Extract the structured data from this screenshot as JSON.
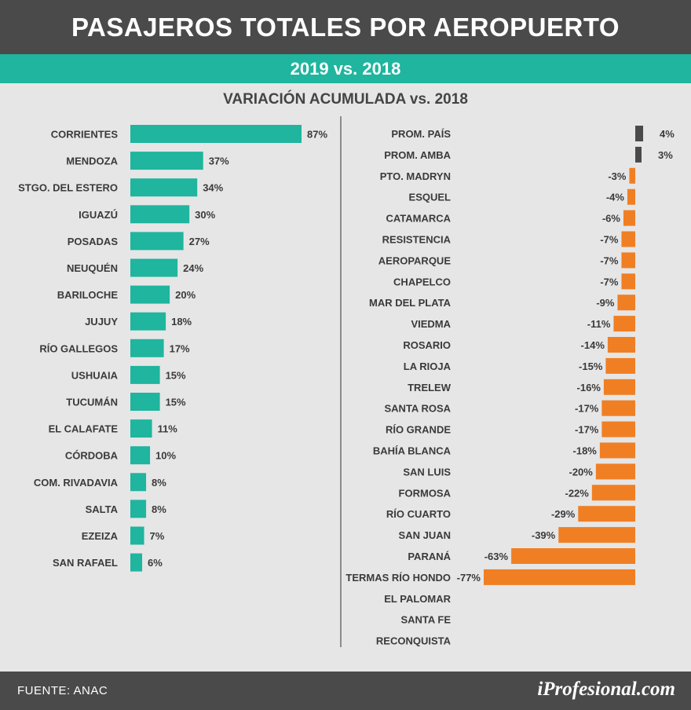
{
  "header": {
    "title": "PASAJEROS TOTALES POR AEROPUERTO",
    "subtitle": "2019 vs. 2018"
  },
  "footer": {
    "source": "FUENTE: ANAC",
    "logo": "iProfesional.com"
  },
  "colors": {
    "positive": "#1fb59e",
    "average": "#4a4a4a",
    "negative": "#f07f24"
  },
  "chart_data": [
    {
      "type": "bar",
      "orientation": "horizontal",
      "title": "VARIACIÓN ACUMULADA vs. 2018",
      "unit": "%",
      "categories": [
        "CORRIENTES",
        "MENDOZA",
        "STGO. DEL ESTERO",
        "IGUAZÚ",
        "POSADAS",
        "NEUQUÉN",
        "BARILOCHE",
        "JUJUY",
        "RÍO GALLEGOS",
        "USHUAIA",
        "TUCUMÁN",
        "EL CALAFATE",
        "CÓRDOBA",
        "COM. RIVADAVIA",
        "SALTA",
        "EZEIZA",
        "SAN RAFAEL"
      ],
      "values": [
        87,
        37,
        34,
        30,
        27,
        24,
        20,
        18,
        17,
        15,
        15,
        11,
        10,
        8,
        8,
        7,
        6
      ],
      "labels": [
        "87%",
        "37%",
        "34%",
        "30%",
        "27%",
        "24%",
        "20%",
        "18%",
        "17%",
        "15%",
        "15%",
        "11%",
        "10%",
        "8%",
        "8%",
        "7%",
        "6%"
      ]
    },
    {
      "type": "bar",
      "orientation": "horizontal",
      "unit": "%",
      "categories": [
        "PROM. PAÍS",
        "PROM. AMBA",
        "PTO. MADRYN",
        "ESQUEL",
        "CATAMARCA",
        "RESISTENCIA",
        "AEROPARQUE",
        "CHAPELCO",
        "MAR DEL PLATA",
        "VIEDMA",
        "ROSARIO",
        "LA RIOJA",
        "TRELEW",
        "SANTA ROSA",
        "RÍO GRANDE",
        "BAHÍA BLANCA",
        "SAN LUIS",
        "FORMOSA",
        "RÍO CUARTO",
        "SAN JUAN",
        "PARANÁ",
        "TERMAS RÍO HONDO",
        "EL PALOMAR",
        "SANTA FE",
        "RECONQUISTA"
      ],
      "values": [
        4,
        3,
        -3,
        -4,
        -6,
        -7,
        -7,
        -7,
        -9,
        -11,
        -14,
        -15,
        -16,
        -17,
        -17,
        -18,
        -20,
        -22,
        -29,
        -39,
        -63,
        -77,
        null,
        null,
        null
      ],
      "labels": [
        "4%",
        "3%",
        "-3%",
        "-4%",
        "-6%",
        "-7%",
        "-7%",
        "-7%",
        "-9%",
        "-11%",
        "-14%",
        "-15%",
        "-16%",
        "-17%",
        "-17%",
        "-18%",
        "-20%",
        "-22%",
        "-29%",
        "-39%",
        "-63%",
        "-77%",
        "",
        "",
        ""
      ]
    }
  ]
}
